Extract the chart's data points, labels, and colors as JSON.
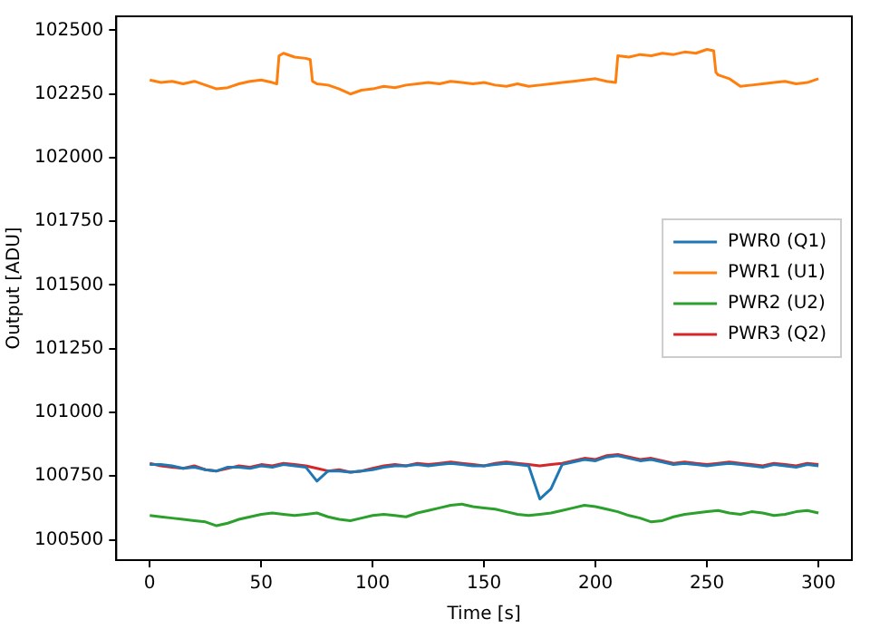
{
  "chart_data": {
    "type": "line",
    "xlabel": "Time [s]",
    "ylabel": "Output [ADU]",
    "xlim": [
      -15,
      315
    ],
    "ylim": [
      100420,
      102555
    ],
    "xticks": [
      0,
      50,
      100,
      150,
      200,
      250,
      300
    ],
    "yticks": [
      100500,
      100750,
      101000,
      101250,
      101500,
      101750,
      102000,
      102250,
      102500
    ],
    "grid": false,
    "legend": "right",
    "marker": "none",
    "line_style": "solid",
    "x": [
      0,
      5,
      10,
      15,
      20,
      25,
      30,
      35,
      40,
      45,
      50,
      55,
      60,
      65,
      70,
      75,
      80,
      85,
      90,
      95,
      100,
      105,
      110,
      115,
      120,
      125,
      130,
      135,
      140,
      145,
      150,
      155,
      160,
      165,
      170,
      175,
      180,
      185,
      190,
      195,
      200,
      205,
      210,
      215,
      220,
      225,
      230,
      235,
      240,
      245,
      250,
      255,
      260,
      265,
      270,
      275,
      280,
      285,
      290,
      295,
      300
    ],
    "series": [
      {
        "name": "PWR0 (Q1)",
        "color": "#1f77b4",
        "values": [
          100795,
          100795,
          100790,
          100780,
          100785,
          100775,
          100770,
          100785,
          100785,
          100780,
          100790,
          100785,
          100795,
          100790,
          100785,
          100730,
          100770,
          100770,
          100765,
          100770,
          100775,
          100785,
          100790,
          100790,
          100795,
          100790,
          100795,
          100800,
          100795,
          100790,
          100790,
          100795,
          100800,
          100795,
          100790,
          100660,
          100700,
          100795,
          100805,
          100815,
          100810,
          100825,
          100830,
          100820,
          100810,
          100815,
          100805,
          100795,
          100800,
          100795,
          100790,
          100795,
          100800,
          100795,
          100790,
          100785,
          100795,
          100790,
          100785,
          100795,
          100790
        ]
      },
      {
        "name": "PWR1 (U1)",
        "color": "#ff7f0e",
        "x": [
          0,
          5,
          10,
          15,
          20,
          25,
          30,
          35,
          40,
          45,
          50,
          55,
          57,
          58,
          60,
          65,
          70,
          72,
          73,
          75,
          80,
          85,
          90,
          95,
          100,
          105,
          110,
          115,
          120,
          125,
          130,
          135,
          140,
          145,
          150,
          155,
          160,
          165,
          170,
          175,
          180,
          185,
          190,
          195,
          200,
          205,
          209,
          210,
          215,
          220,
          225,
          230,
          235,
          240,
          245,
          250,
          253,
          254,
          255,
          260,
          265,
          270,
          275,
          280,
          285,
          290,
          295,
          300
        ],
        "values": [
          102305,
          102295,
          102300,
          102290,
          102300,
          102285,
          102270,
          102275,
          102290,
          102300,
          102305,
          102295,
          102290,
          102400,
          102410,
          102395,
          102390,
          102385,
          102300,
          102290,
          102285,
          102270,
          102250,
          102265,
          102270,
          102280,
          102275,
          102285,
          102290,
          102295,
          102290,
          102300,
          102295,
          102290,
          102295,
          102285,
          102280,
          102290,
          102280,
          102285,
          102290,
          102295,
          102300,
          102305,
          102310,
          102300,
          102295,
          102400,
          102395,
          102405,
          102400,
          102410,
          102405,
          102415,
          102410,
          102425,
          102420,
          102335,
          102325,
          102310,
          102280,
          102285,
          102290,
          102295,
          102300,
          102290,
          102295,
          102310
        ]
      },
      {
        "name": "PWR2 (U2)",
        "color": "#2ca02c",
        "values": [
          100595,
          100590,
          100585,
          100580,
          100575,
          100570,
          100555,
          100565,
          100580,
          100590,
          100600,
          100605,
          100600,
          100595,
          100600,
          100605,
          100590,
          100580,
          100575,
          100585,
          100595,
          100600,
          100595,
          100590,
          100605,
          100615,
          100625,
          100635,
          100640,
          100630,
          100625,
          100620,
          100610,
          100600,
          100595,
          100600,
          100605,
          100615,
          100625,
          100635,
          100630,
          100620,
          100610,
          100595,
          100585,
          100570,
          100575,
          100590,
          100600,
          100605,
          100610,
          100615,
          100605,
          100600,
          100610,
          100605,
          100595,
          100600,
          100610,
          100615,
          100605
        ]
      },
      {
        "name": "PWR3 (Q2)",
        "color": "#d62728",
        "values": [
          100800,
          100790,
          100785,
          100780,
          100790,
          100775,
          100770,
          100780,
          100790,
          100785,
          100795,
          100790,
          100800,
          100795,
          100790,
          100780,
          100770,
          100775,
          100765,
          100770,
          100780,
          100790,
          100795,
          100790,
          100800,
          100795,
          100800,
          100805,
          100800,
          100795,
          100790,
          100800,
          100805,
          100800,
          100795,
          100790,
          100795,
          100800,
          100810,
          100820,
          100815,
          100830,
          100835,
          100825,
          100815,
          100820,
          100810,
          100800,
          100805,
          100800,
          100795,
          100800,
          100805,
          100800,
          100795,
          100790,
          100800,
          100795,
          100790,
          100800,
          100795
        ]
      }
    ]
  }
}
